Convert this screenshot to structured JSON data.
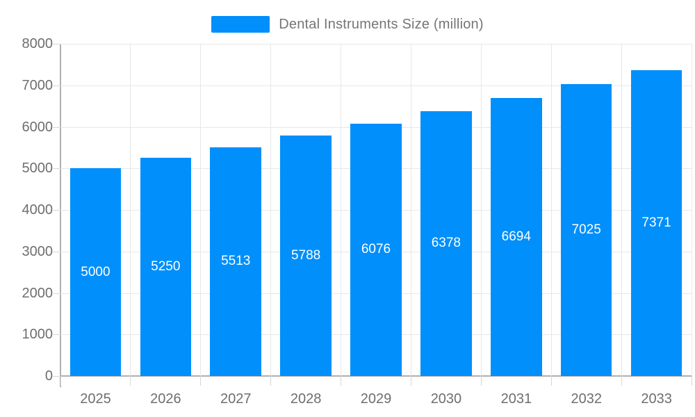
{
  "chart_data": {
    "type": "bar",
    "title": "Dental Instruments Size (million)",
    "legend": {
      "label": "Dental Instruments Size (million)",
      "position": "top"
    },
    "categories": [
      "2025",
      "2026",
      "2027",
      "2028",
      "2029",
      "2030",
      "2031",
      "2032",
      "2033"
    ],
    "values": [
      5000,
      5250,
      5513,
      5788,
      6076,
      6378,
      6694,
      7025,
      7371
    ],
    "xlabel": "",
    "ylabel": "",
    "ylim": [
      0,
      8000
    ],
    "yticks": [
      0,
      1000,
      2000,
      3000,
      4000,
      5000,
      6000,
      7000,
      8000
    ],
    "grid": true,
    "bar_color": "#008FFB",
    "bar_label_color": "#ffffff",
    "axis_label_color": "#6e6e6e",
    "legend_text_color": "#757575",
    "gridline_color": "#e7e7e7",
    "axis_line_color": "#b0b0b0"
  }
}
